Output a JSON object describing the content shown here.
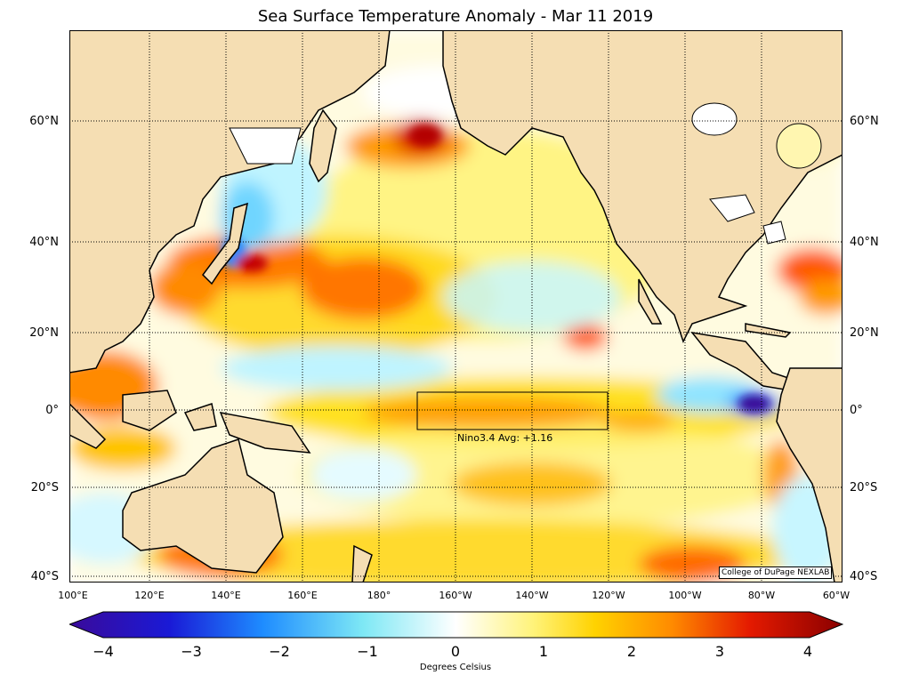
{
  "title": "Sea Surface Temperature Anomaly - Mar 11 2019",
  "lat_labels": [
    "60°N",
    "40°N",
    "20°N",
    "0°",
    "20°S",
    "40°S"
  ],
  "lon_labels": [
    "100°E",
    "120°E",
    "140°E",
    "160°E",
    "180°",
    "160°W",
    "140°W",
    "120°W",
    "100°W",
    "80°W",
    "60°W"
  ],
  "nino_box": {
    "label": "Nino3.4 Avg: +1.16",
    "value": 1.16
  },
  "credit": "College of DuPage NEXLAB",
  "colorbar": {
    "ticks": [
      "−4",
      "−3",
      "−2",
      "−1",
      "0",
      "1",
      "2",
      "3",
      "4"
    ],
    "label": "Degrees Celsius",
    "range": [
      -4,
      4
    ]
  },
  "colors": {
    "land": "#f5deb3",
    "ocean_neutral": "#ffffff",
    "cold_strong": "#3a0a9a",
    "cold": "#1e8cff",
    "cool": "#7ee8f5",
    "warm_light": "#fff37a",
    "warm": "#ffc400",
    "hot": "#ff5a00",
    "very_hot": "#b30000"
  }
}
